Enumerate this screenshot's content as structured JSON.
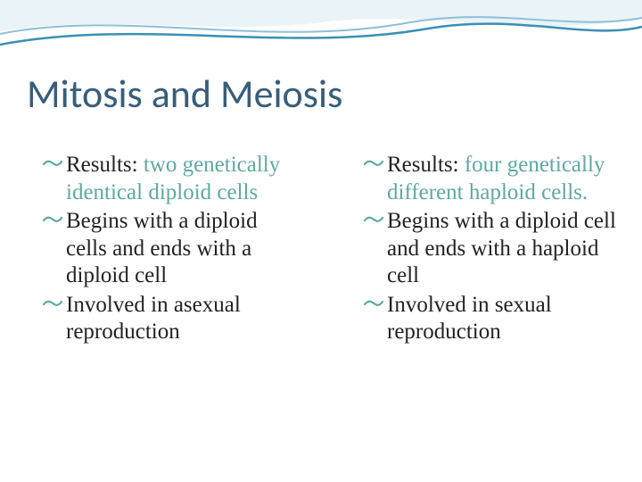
{
  "title": "Mitosis and Meiosis",
  "title_color": "#385d7a",
  "title_fontsize": 44,
  "body_fontsize": 25,
  "bullet_color": "#5fa8a0",
  "background_color": "#ffffff",
  "wave": {
    "line_color": "#3b8fb5",
    "line_color_light": "#8fbfd6",
    "fill_top": "#eaf3f8"
  },
  "columns": [
    {
      "items": [
        {
          "runs": [
            {
              "text": "Results: ",
              "style": "black"
            },
            {
              "text": "two genetically identical diploid cells",
              "style": "accent"
            }
          ]
        },
        {
          "runs": [
            {
              "text": "Begins with a diploid cells and ends with a diploid cell",
              "style": "black"
            }
          ]
        },
        {
          "runs": [
            {
              "text": "Involved in asexual reproduction",
              "style": "black"
            }
          ]
        }
      ]
    },
    {
      "items": [
        {
          "runs": [
            {
              "text": "Results: ",
              "style": "black"
            },
            {
              "text": "four genetically different haploid cells.",
              "style": "accent"
            }
          ]
        },
        {
          "runs": [
            {
              "text": "Begins with a  diploid cell and ends with a haploid cell",
              "style": "black"
            }
          ]
        },
        {
          "runs": [
            {
              "text": "Involved in sexual reproduction",
              "style": "black"
            }
          ]
        }
      ]
    }
  ]
}
